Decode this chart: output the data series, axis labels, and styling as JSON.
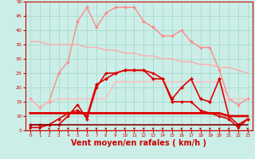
{
  "bg_color": "#cceee8",
  "grid_color": "#aaddcc",
  "x_labels": [
    0,
    1,
    2,
    3,
    4,
    5,
    6,
    7,
    8,
    9,
    10,
    11,
    12,
    13,
    14,
    15,
    16,
    17,
    18,
    19,
    20,
    21,
    22,
    23
  ],
  "ylim": [
    5,
    50
  ],
  "yticks": [
    5,
    10,
    15,
    20,
    25,
    30,
    35,
    40,
    45,
    50
  ],
  "xlabel": "Vent moyen/en rafales ( km/h )",
  "xlabel_color": "#cc0000",
  "xlabel_fontsize": 7,
  "series": [
    {
      "name": "rafales_peak",
      "color": "#ff8888",
      "lw": 1.0,
      "marker": "D",
      "ms": 1.8,
      "values": [
        16,
        13,
        15,
        25,
        29,
        43,
        48,
        41,
        46,
        48,
        48,
        48,
        43,
        41,
        38,
        38,
        40,
        36,
        34,
        34,
        26,
        16,
        14,
        16
      ]
    },
    {
      "name": "rafales_trend1",
      "color": "#ffaaaa",
      "lw": 1.0,
      "marker": null,
      "ms": 0,
      "values": [
        36,
        36,
        35,
        35,
        35,
        35,
        34,
        34,
        33,
        33,
        32,
        32,
        31,
        31,
        30,
        30,
        29,
        29,
        28,
        28,
        27,
        27,
        26,
        25
      ]
    },
    {
      "name": "rafales_trend2",
      "color": "#ffbbbb",
      "lw": 1.0,
      "marker": null,
      "ms": 0,
      "values": [
        16,
        13,
        15,
        16,
        16,
        16,
        16,
        16,
        16,
        22,
        22,
        22,
        22,
        22,
        22,
        22,
        22,
        22,
        22,
        22,
        22,
        16,
        16,
        16
      ]
    },
    {
      "name": "vent_moyen",
      "color": "#dd0000",
      "lw": 1.2,
      "marker": "D",
      "ms": 2.0,
      "values": [
        7,
        7,
        7,
        9,
        11,
        12,
        10,
        21,
        23,
        25,
        26,
        26,
        26,
        23,
        23,
        16,
        20,
        23,
        16,
        15,
        23,
        10,
        7,
        9
      ]
    },
    {
      "name": "vent_min",
      "color": "#dd0000",
      "lw": 1.2,
      "marker": "D",
      "ms": 1.8,
      "values": [
        6,
        6,
        7,
        7,
        10,
        14,
        9,
        20,
        25,
        25,
        26,
        26,
        26,
        25,
        23,
        15,
        15,
        15,
        12,
        11,
        10,
        9,
        6,
        9
      ]
    },
    {
      "name": "vent_base_high",
      "color": "#dd0000",
      "lw": 2.0,
      "marker": null,
      "ms": 0,
      "values": [
        11,
        11,
        11,
        11,
        11,
        11,
        11,
        11,
        11,
        11,
        11,
        11,
        11,
        11,
        11,
        11,
        11,
        11,
        11,
        11,
        11,
        10,
        10,
        10
      ]
    },
    {
      "name": "vent_base_low",
      "color": "#880000",
      "lw": 1.2,
      "marker": null,
      "ms": 0,
      "values": [
        7,
        7,
        7,
        7,
        7,
        7,
        7,
        7,
        7,
        7,
        7,
        7,
        7,
        7,
        7,
        7,
        7,
        7,
        7,
        7,
        7,
        7,
        7,
        7
      ]
    }
  ],
  "arrow_color": "#cc0000",
  "tick_color": "#cc0000",
  "spine_color": "#cc0000"
}
